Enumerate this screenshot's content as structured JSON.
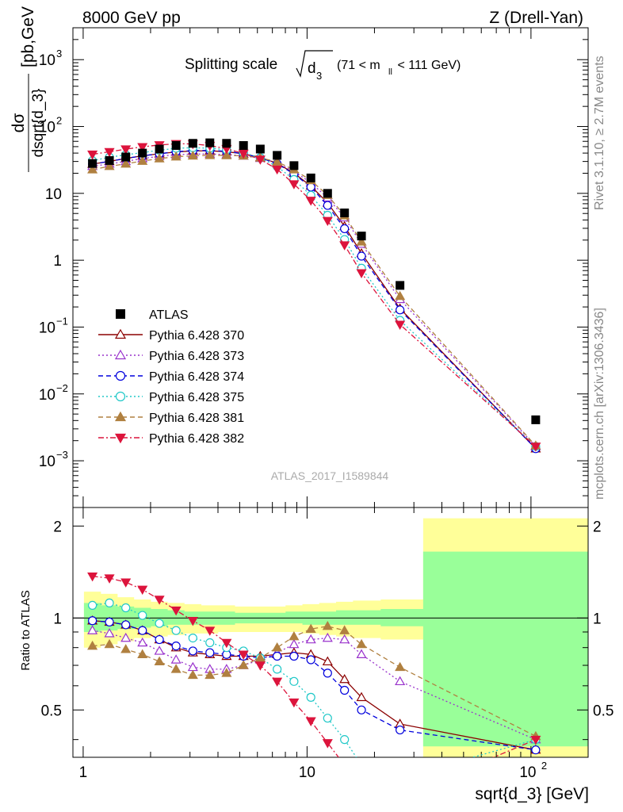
{
  "header": {
    "left": "8000 GeV pp",
    "right": "Z (Drell-Yan)"
  },
  "side_labels": {
    "rivet": "Rivet 3.1.10, ≥ 2.7M events",
    "mcplots": "mcplots.cern.ch [arXiv:1306.3436]"
  },
  "main_panel": {
    "title_prefix": "Splitting scale",
    "title_var": "d",
    "title_sub": "3",
    "title_cut": "(71 < m",
    "title_cut_sub": "ll",
    "title_cut_end": " < 111 GeV)",
    "ylabel_num": "dσ",
    "ylabel_den": "dsqrt{d_3}",
    "ylabel_unit": "[pb,GeV",
    "ylabel_unit_sup": "-1",
    "ylabel_unit_end": "]",
    "analysis_tag": "ATLAS_2017_I1589844",
    "yticks": [
      {
        "v": 1000,
        "base": "10",
        "exp": "3"
      },
      {
        "v": 100,
        "base": "10",
        "exp": "2"
      },
      {
        "v": 10,
        "base": "10",
        "exp": ""
      },
      {
        "v": 1,
        "base": "1",
        "exp": ""
      },
      {
        "v": 0.1,
        "base": "10",
        "exp": "−1"
      },
      {
        "v": 0.01,
        "base": "10",
        "exp": "−2"
      },
      {
        "v": 0.001,
        "base": "10",
        "exp": "−3"
      }
    ]
  },
  "ratio_panel": {
    "ylabel": "Ratio to ATLAS",
    "yticks": [
      "0.5",
      "1",
      "2"
    ]
  },
  "xaxis": {
    "label": "sqrt{d_3} [GeV]",
    "ticks": [
      "1",
      "10",
      "10"
    ],
    "tick_sup": "2"
  },
  "legend": [
    {
      "label": "ATLAS",
      "color": "#000000",
      "marker": "square-filled",
      "dash": ""
    },
    {
      "label": "Pythia 6.428 370",
      "color": "#8b0000",
      "marker": "triangle-up-open",
      "dash": ""
    },
    {
      "label": "Pythia 6.428 373",
      "color": "#9932cc",
      "marker": "triangle-up-open",
      "dash": "2,3"
    },
    {
      "label": "Pythia 6.428 374",
      "color": "#0000dd",
      "marker": "circle-open",
      "dash": "6,4"
    },
    {
      "label": "Pythia 6.428 375",
      "color": "#20c8c8",
      "marker": "circle-open",
      "dash": "2,3"
    },
    {
      "label": "Pythia 6.428 381",
      "color": "#b08040",
      "marker": "triangle-up-filled",
      "dash": "6,4"
    },
    {
      "label": "Pythia 6.428 382",
      "color": "#dc143c",
      "marker": "triangle-down-filled",
      "dash": "7,3,2,3"
    }
  ],
  "chart_data": {
    "type": "scatter",
    "x_scale": "log",
    "main_y_scale": "log",
    "xlim": [
      0.9,
      180
    ],
    "main_ylim": [
      0.0002,
      3000
    ],
    "ratio_ylim": [
      0.35,
      2.3
    ],
    "x": [
      1.1,
      1.31,
      1.55,
      1.84,
      2.19,
      2.6,
      3.09,
      3.68,
      4.37,
      5.2,
      6.18,
      7.35,
      8.74,
      10.4,
      12.35,
      14.7,
      17.5,
      26,
      105
    ],
    "atlas": [
      28,
      31,
      35,
      40,
      46,
      52,
      56,
      57,
      56,
      52,
      46,
      37,
      26,
      17,
      10,
      5.1,
      2.3,
      0.42,
      0.0041
    ],
    "ratio_band_green_upper": [
      1.12,
      1.1,
      1.09,
      1.08,
      1.07,
      1.06,
      1.05,
      1.05,
      1.05,
      1.04,
      1.04,
      1.04,
      1.05,
      1.05,
      1.05,
      1.06,
      1.06,
      1.07,
      1.65
    ],
    "ratio_band_green_lower": [
      0.9,
      0.91,
      0.92,
      0.93,
      0.94,
      0.95,
      0.95,
      0.95,
      0.95,
      0.96,
      0.96,
      0.96,
      0.96,
      0.95,
      0.95,
      0.95,
      0.95,
      0.94,
      0.38
    ],
    "ratio_band_yellow_upper": [
      1.22,
      1.2,
      1.17,
      1.15,
      1.13,
      1.12,
      1.11,
      1.1,
      1.1,
      1.09,
      1.09,
      1.09,
      1.1,
      1.11,
      1.12,
      1.13,
      1.14,
      1.15,
      2.12
    ],
    "ratio_band_yellow_lower": [
      0.8,
      0.82,
      0.84,
      0.86,
      0.87,
      0.88,
      0.89,
      0.89,
      0.9,
      0.9,
      0.9,
      0.9,
      0.9,
      0.89,
      0.88,
      0.87,
      0.86,
      0.85,
      0.35
    ],
    "series": [
      {
        "name": "Pythia 6.428 370",
        "ratio": [
          0.98,
          0.97,
          0.95,
          0.91,
          0.85,
          0.8,
          0.77,
          0.76,
          0.75,
          0.75,
          0.75,
          0.76,
          0.77,
          0.76,
          0.72,
          0.63,
          0.55,
          0.45,
          0.37
        ]
      },
      {
        "name": "Pythia 6.428 373",
        "ratio": [
          0.91,
          0.89,
          0.86,
          0.83,
          0.78,
          0.73,
          0.69,
          0.68,
          0.68,
          0.7,
          0.73,
          0.77,
          0.82,
          0.85,
          0.86,
          0.85,
          0.76,
          0.62,
          0.4
        ]
      },
      {
        "name": "Pythia 6.428 374",
        "ratio": [
          0.98,
          0.97,
          0.95,
          0.91,
          0.85,
          0.81,
          0.78,
          0.77,
          0.76,
          0.75,
          0.74,
          0.75,
          0.75,
          0.73,
          0.66,
          0.58,
          0.5,
          0.43,
          0.37
        ]
      },
      {
        "name": "Pythia 6.428 375",
        "ratio": [
          1.1,
          1.12,
          1.08,
          1.02,
          0.96,
          0.91,
          0.86,
          0.83,
          0.8,
          0.78,
          0.74,
          0.68,
          0.62,
          0.55,
          0.47,
          0.4,
          0.33,
          0.3,
          0.4
        ]
      },
      {
        "name": "Pythia 6.428 381",
        "ratio": [
          0.81,
          0.82,
          0.79,
          0.76,
          0.72,
          0.68,
          0.65,
          0.65,
          0.66,
          0.7,
          0.74,
          0.8,
          0.87,
          0.92,
          0.94,
          0.91,
          0.82,
          0.69,
          0.41
        ]
      },
      {
        "name": "Pythia 6.428 382",
        "ratio": [
          1.37,
          1.35,
          1.31,
          1.24,
          1.15,
          1.06,
          0.98,
          0.91,
          0.83,
          0.76,
          0.7,
          0.62,
          0.53,
          0.46,
          0.39,
          0.33,
          0.28,
          0.26,
          0.4
        ]
      }
    ]
  }
}
